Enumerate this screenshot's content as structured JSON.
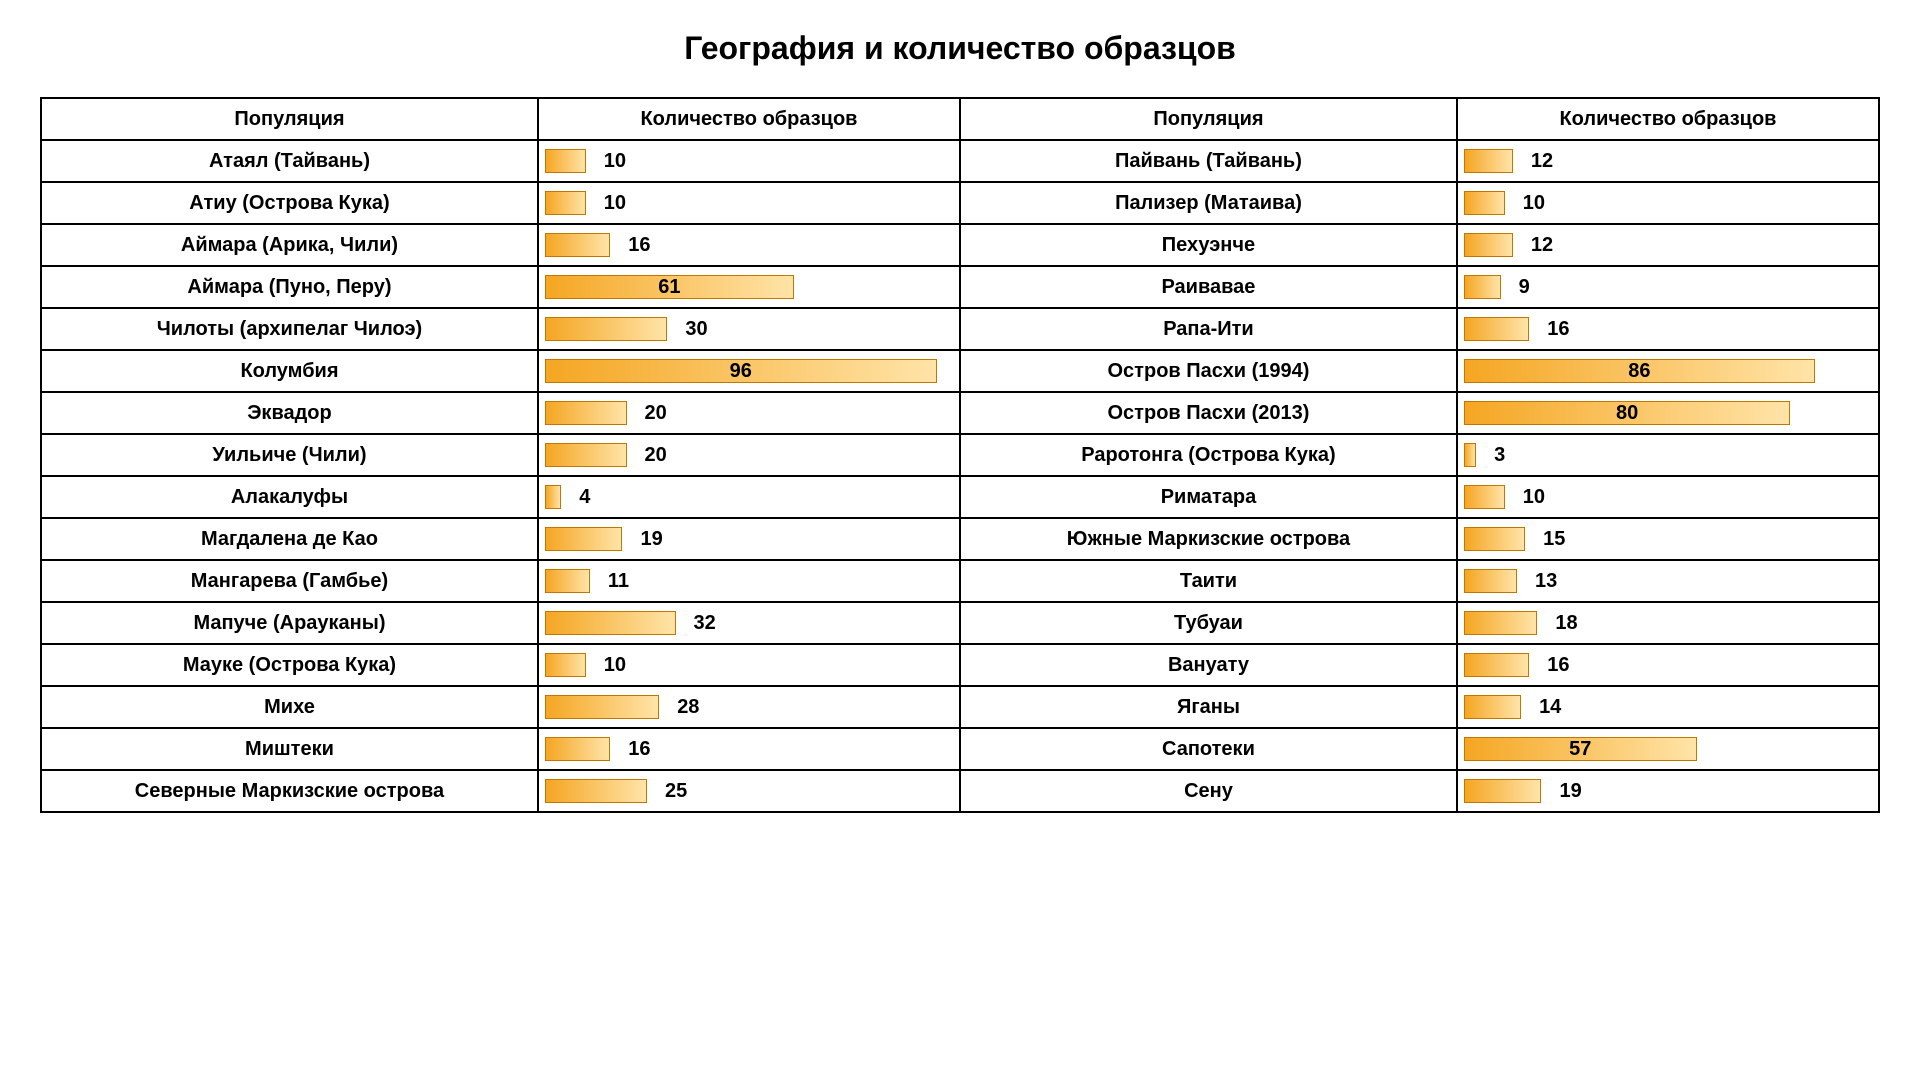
{
  "title": "География и количество образцов",
  "headers": {
    "population": "Популяция",
    "count": "Количество образцов"
  },
  "chart": {
    "max_value": 100,
    "bar_gradient_start": "#f5a623",
    "bar_gradient_end": "#ffe4a8",
    "bar_border": "#c07800",
    "inside_label_threshold": 50,
    "font_family": "Arial",
    "title_fontsize": 32,
    "cell_fontsize": 20,
    "border_color": "#000000",
    "background_color": "#ffffff"
  },
  "rows": [
    {
      "left_name": "Атаял (Тайвань)",
      "left_value": 10,
      "right_name": "Пайвань (Тайвань)",
      "right_value": 12
    },
    {
      "left_name": "Атиу (Острова Кука)",
      "left_value": 10,
      "right_name": "Пализер (Матаива)",
      "right_value": 10
    },
    {
      "left_name": "Аймара (Арика, Чили)",
      "left_value": 16,
      "right_name": "Пехуэнче",
      "right_value": 12
    },
    {
      "left_name": "Аймара (Пуно, Перу)",
      "left_value": 61,
      "right_name": "Раивавае",
      "right_value": 9
    },
    {
      "left_name": "Чилоты (архипелаг Чилоэ)",
      "left_value": 30,
      "right_name": "Рапа-Ити",
      "right_value": 16
    },
    {
      "left_name": "Колумбия",
      "left_value": 96,
      "right_name": "Остров Пасхи (1994)",
      "right_value": 86
    },
    {
      "left_name": "Эквадор",
      "left_value": 20,
      "right_name": "Остров Пасхи (2013)",
      "right_value": 80
    },
    {
      "left_name": "Уильиче (Чили)",
      "left_value": 20,
      "right_name": "Раротонга (Острова Кука)",
      "right_value": 3
    },
    {
      "left_name": "Алакалуфы",
      "left_value": 4,
      "right_name": "Риматара",
      "right_value": 10
    },
    {
      "left_name": "Магдалена де Као",
      "left_value": 19,
      "right_name": "Южные Маркизские острова",
      "right_value": 15
    },
    {
      "left_name": "Мангарева (Гамбье)",
      "left_value": 11,
      "right_name": "Таити",
      "right_value": 13
    },
    {
      "left_name": "Мапуче (Арауканы)",
      "left_value": 32,
      "right_name": "Тубуаи",
      "right_value": 18
    },
    {
      "left_name": "Мауке (Острова Кука)",
      "left_value": 10,
      "right_name": "Вануату",
      "right_value": 16
    },
    {
      "left_name": "Михе",
      "left_value": 28,
      "right_name": "Яганы",
      "right_value": 14
    },
    {
      "left_name": "Миштеки",
      "left_value": 16,
      "right_name": "Сапотеки",
      "right_value": 57
    },
    {
      "left_name": "Северные Маркизские острова",
      "left_value": 25,
      "right_name": "Сену",
      "right_value": 19
    }
  ]
}
